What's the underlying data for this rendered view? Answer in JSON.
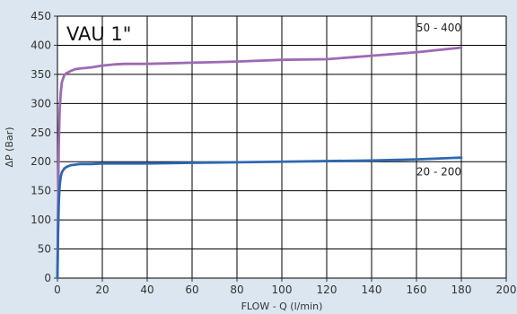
{
  "chart_data": {
    "type": "line",
    "title": "VAU 1\"",
    "xlabel": "FLOW - Q (l/min)",
    "ylabel": "ΔP (Bar)",
    "xlim": [
      0,
      200
    ],
    "ylim": [
      0,
      450
    ],
    "x_ticks": [
      0,
      20,
      40,
      60,
      80,
      100,
      120,
      140,
      160,
      180,
      200
    ],
    "y_ticks": [
      0,
      50,
      100,
      150,
      200,
      250,
      300,
      350,
      400,
      450
    ],
    "grid": true,
    "colors": {
      "plot_background": "#ffffff",
      "grid": "#000000",
      "page_background": "#dbe6f0"
    },
    "series": [
      {
        "name": "50 - 400",
        "color": "#9c6ab3",
        "x": [
          0,
          0.3,
          0.6,
          1,
          1.5,
          2,
          3,
          4,
          6,
          8,
          10,
          15,
          20,
          25,
          30,
          40,
          60,
          80,
          100,
          120,
          140,
          160,
          180
        ],
        "y": [
          0,
          130,
          230,
          290,
          320,
          337,
          348,
          352,
          356,
          359,
          360,
          362,
          365,
          367,
          368,
          368,
          370,
          372,
          375,
          376,
          382,
          388,
          396
        ]
      },
      {
        "name": "20 - 200",
        "color": "#2e68b2",
        "x": [
          0,
          0.3,
          0.6,
          1,
          1.5,
          2,
          3,
          4,
          6,
          8,
          10,
          15,
          20,
          30,
          40,
          60,
          80,
          100,
          120,
          140,
          160,
          180
        ],
        "y": [
          0,
          80,
          130,
          160,
          175,
          182,
          188,
          191,
          194,
          195,
          196,
          196,
          197,
          197,
          197,
          198,
          199,
          200,
          201,
          202,
          204,
          207
        ]
      }
    ]
  }
}
